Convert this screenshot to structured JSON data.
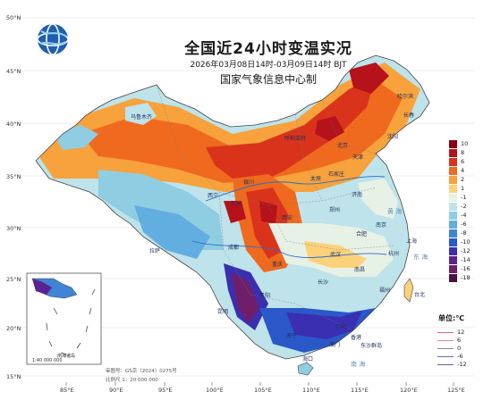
{
  "title": "全国近24小时变温实况",
  "time_range": "2026年03月08日14时-03月09日14时 BJT",
  "agency": "国家气象信息中心制",
  "lat_labels": [
    "50°N",
    "45°N",
    "40°N",
    "35°N",
    "30°N",
    "25°N",
    "20°N",
    "15°N"
  ],
  "lon_labels": [
    "85°E",
    "90°E",
    "95°E",
    "100°E",
    "105°E",
    "110°E",
    "115°E",
    "120°E",
    "125°E"
  ],
  "legend": {
    "items": [
      {
        "label": "10",
        "color": "#8a0010"
      },
      {
        "label": "8",
        "color": "#b5121b"
      },
      {
        "label": "6",
        "color": "#d9341b"
      },
      {
        "label": "4",
        "color": "#ef6a1f"
      },
      {
        "label": "2",
        "color": "#f7a23c"
      },
      {
        "label": "1",
        "color": "#fbd27a"
      },
      {
        "label": "-1",
        "color": "#e8f1e6"
      },
      {
        "label": "-2",
        "color": "#bfe3ea"
      },
      {
        "label": "-4",
        "color": "#8fcde3"
      },
      {
        "label": "-6",
        "color": "#62aee0"
      },
      {
        "label": "-8",
        "color": "#3f84d6"
      },
      {
        "label": "-10",
        "color": "#2a58c9"
      },
      {
        "label": "-12",
        "color": "#3a2fb0"
      },
      {
        "label": "-14",
        "color": "#5a238f"
      },
      {
        "label": "-16",
        "color": "#6f1f6a"
      },
      {
        "label": "-18",
        "color": "#4a1240"
      }
    ]
  },
  "unit": "单位:℃",
  "contours": [
    {
      "label": "12",
      "color": "#e0607a"
    },
    {
      "label": "6",
      "color": "#d98a9a"
    },
    {
      "label": "0",
      "color": "#888888"
    },
    {
      "label": "-6",
      "color": "#5a6fb0"
    },
    {
      "label": "-12",
      "color": "#6b5a9a"
    }
  ],
  "cities": [
    "乌鲁木齐",
    "哈尔滨",
    "长春",
    "沈阳",
    "北京",
    "天津",
    "呼和浩特",
    "石家庄",
    "太原",
    "银川",
    "西宁",
    "兰州",
    "郑州",
    "济南",
    "西安",
    "南京",
    "合肥",
    "上海",
    "杭州",
    "武汉",
    "成都",
    "重庆",
    "长沙",
    "南昌",
    "福州",
    "贵阳",
    "昆明",
    "广州",
    "南宁",
    "拉萨",
    "台北",
    "香港",
    "澳门",
    "海口",
    "东沙群岛"
  ],
  "seas": [
    "黄 海",
    "东 海",
    "南 海"
  ],
  "inset": {
    "label": "南海诸岛",
    "scale": "1:40 000 000"
  },
  "map_number": "审图号：GS京（2024）0275号",
  "scale": "比例尺 1：20 000 000",
  "logo": "cma-globe-logo"
}
